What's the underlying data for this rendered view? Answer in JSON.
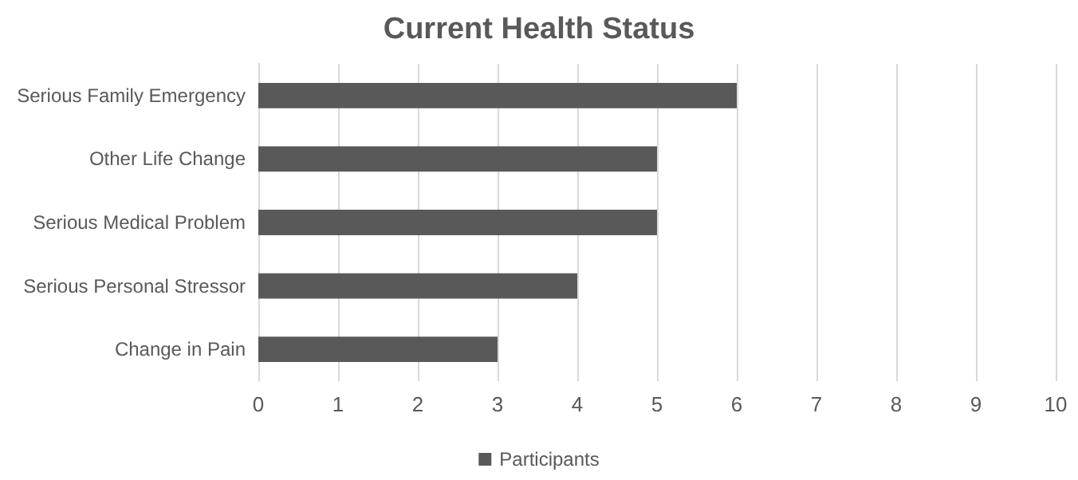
{
  "chart_data": {
    "type": "bar",
    "title": "Current Health Status",
    "orientation": "horizontal",
    "categories": [
      "Serious Family Emergency",
      "Other Life Change",
      "Serious Medical Problem",
      "Serious Personal Stressor",
      "Change in Pain"
    ],
    "series": [
      {
        "name": "Participants",
        "color": "#595959",
        "values": [
          6,
          5,
          5,
          4,
          3
        ]
      }
    ],
    "xlim": [
      0,
      10
    ],
    "xticks": [
      0,
      1,
      2,
      3,
      4,
      5,
      6,
      7,
      8,
      9,
      10
    ],
    "grid": "x",
    "legend": "bottom"
  }
}
